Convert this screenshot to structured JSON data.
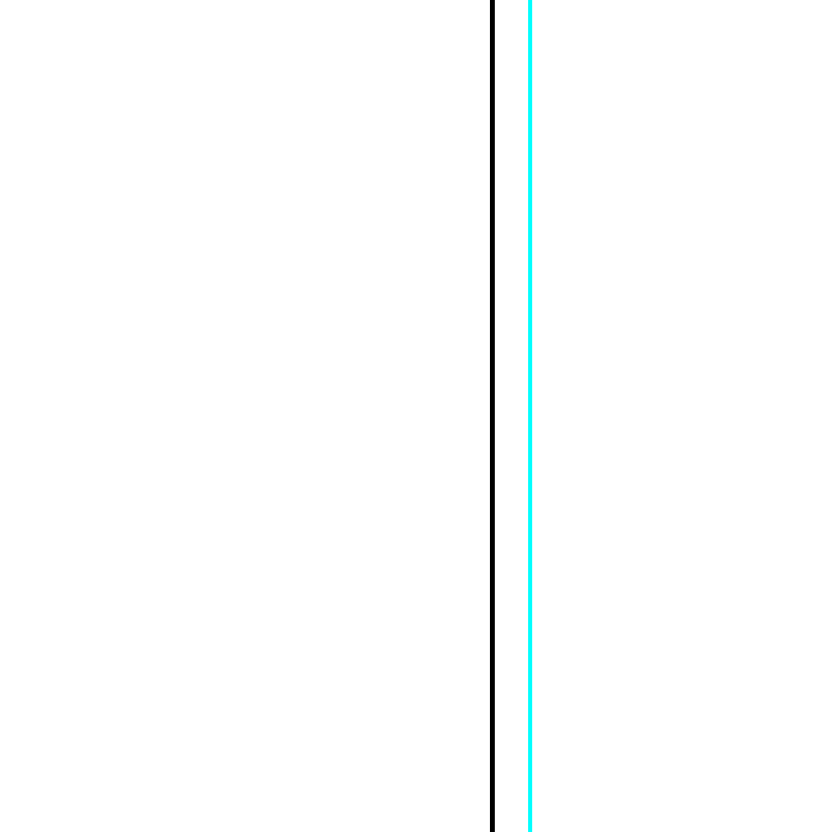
{
  "background": {
    "color": "#ffffff"
  },
  "lines": [
    {
      "name": "black-vertical-line",
      "color": "#000000"
    },
    {
      "name": "cyan-vertical-line",
      "color": "#00ffff"
    }
  ]
}
